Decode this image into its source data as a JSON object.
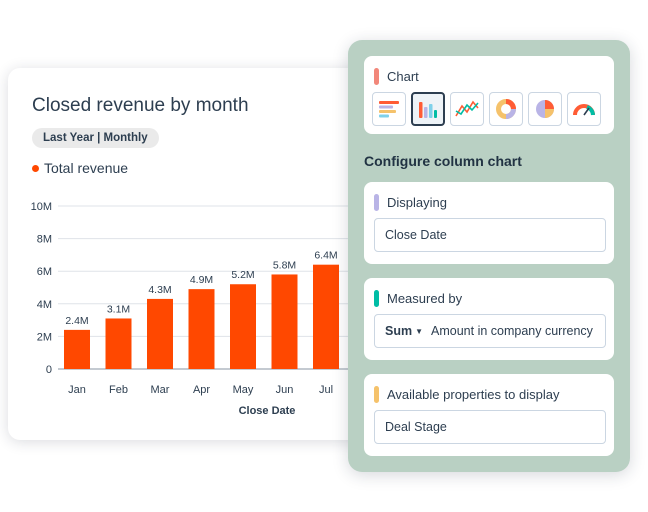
{
  "report": {
    "title": "Closed revenue by month",
    "date_pill": "Last Year | Monthly",
    "legend_label": "Total revenue",
    "legend_color": "#ff4800"
  },
  "chart_data": {
    "type": "bar",
    "categories": [
      "Jan",
      "Feb",
      "Mar",
      "Apr",
      "May",
      "Jun",
      "Jul"
    ],
    "values": [
      2.4,
      3.1,
      4.3,
      4.9,
      5.2,
      5.8,
      6.4
    ],
    "value_labels": [
      "2.4M",
      "3.1M",
      "4.3M",
      "4.9M",
      "5.2M",
      "5.8M",
      "6.4M"
    ],
    "y_ticks": [
      "0",
      "2M",
      "4M",
      "6M",
      "8M",
      "10M"
    ],
    "ylim": [
      0,
      10
    ],
    "xlabel": "Close Date",
    "ylabel": "",
    "grid": true,
    "bar_color": "#ff4800"
  },
  "config": {
    "chart_section_label": "Chart",
    "chart_types": [
      {
        "icon": "horizontal-bar-chart-icon"
      },
      {
        "icon": "column-chart-icon",
        "selected": true
      },
      {
        "icon": "line-chart-icon"
      },
      {
        "icon": "donut-chart-icon"
      },
      {
        "icon": "pie-chart-icon"
      },
      {
        "icon": "gauge-chart-icon"
      }
    ],
    "heading": "Configure column chart",
    "displaying": {
      "label": "Displaying",
      "value": "Close Date",
      "accent": "#b9b4e6"
    },
    "measured_by": {
      "label": "Measured by",
      "aggregation": "Sum",
      "value": "Amount in company currency",
      "accent": "#00bda5"
    },
    "available": {
      "label": "Available properties to display",
      "value": "Deal Stage",
      "accent": "#f5c26b"
    },
    "chart_accent": "#f2877a"
  }
}
